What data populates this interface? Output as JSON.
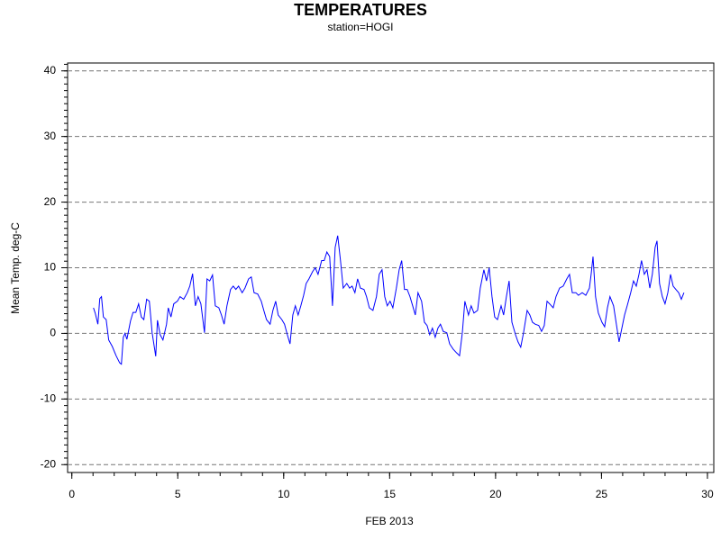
{
  "chart_data": {
    "type": "line",
    "title": "TEMPERATURES",
    "subtitle": "station=HOGI",
    "x_label": "FEB 2013",
    "y_label": "Mean Temp. deg-C",
    "xlim": [
      -0.2,
      30.3
    ],
    "ylim": [
      -21.2,
      41.2
    ],
    "xticks": [
      0,
      5,
      10,
      15,
      20,
      25,
      30
    ],
    "yticks": [
      -20,
      -10,
      0,
      10,
      20,
      30,
      40
    ],
    "grid": true,
    "series": [
      {
        "name": "Mean Temp",
        "color": "#0000ff",
        "x": [
          1.02,
          1.1,
          1.23,
          1.32,
          1.4,
          1.49,
          1.62,
          1.74,
          1.91,
          2.09,
          2.26,
          2.34,
          2.43,
          2.51,
          2.6,
          2.77,
          2.89,
          3.02,
          3.15,
          3.28,
          3.4,
          3.53,
          3.66,
          3.79,
          3.96,
          4.04,
          4.17,
          4.3,
          4.47,
          4.55,
          4.68,
          4.81,
          4.98,
          5.11,
          5.28,
          5.45,
          5.57,
          5.7,
          5.83,
          5.96,
          6.09,
          6.26,
          6.38,
          6.51,
          6.64,
          6.77,
          6.94,
          7.06,
          7.19,
          7.32,
          7.49,
          7.62,
          7.74,
          7.87,
          8.04,
          8.17,
          8.34,
          8.47,
          8.6,
          8.77,
          8.94,
          9.06,
          9.19,
          9.36,
          9.49,
          9.62,
          9.74,
          9.91,
          10.04,
          10.17,
          10.3,
          10.43,
          10.55,
          10.68,
          10.81,
          10.94,
          11.06,
          11.19,
          11.36,
          11.49,
          11.62,
          11.79,
          11.91,
          12.04,
          12.17,
          12.3,
          12.43,
          12.55,
          12.68,
          12.81,
          12.98,
          13.11,
          13.23,
          13.36,
          13.49,
          13.62,
          13.79,
          13.91,
          14.04,
          14.21,
          14.38,
          14.51,
          14.64,
          14.77,
          14.89,
          15.02,
          15.15,
          15.32,
          15.45,
          15.57,
          15.7,
          15.83,
          15.96,
          16.09,
          16.21,
          16.34,
          16.51,
          16.64,
          16.77,
          16.89,
          17.02,
          17.15,
          17.28,
          17.4,
          17.53,
          17.7,
          17.83,
          18.0,
          18.17,
          18.3,
          18.43,
          18.55,
          18.72,
          18.85,
          18.98,
          19.15,
          19.28,
          19.45,
          19.57,
          19.7,
          19.83,
          19.96,
          20.09,
          20.26,
          20.38,
          20.51,
          20.64,
          20.77,
          20.94,
          21.06,
          21.19,
          21.32,
          21.49,
          21.62,
          21.74,
          21.87,
          22.04,
          22.17,
          22.3,
          22.43,
          22.55,
          22.72,
          22.85,
          23.02,
          23.19,
          23.36,
          23.49,
          23.62,
          23.79,
          23.91,
          24.09,
          24.26,
          24.43,
          24.51,
          24.6,
          24.72,
          24.85,
          25.02,
          25.15,
          25.28,
          25.4,
          25.57,
          25.7,
          25.83,
          25.96,
          26.09,
          26.21,
          26.38,
          26.51,
          26.64,
          26.77,
          26.89,
          27.02,
          27.15,
          27.28,
          27.4,
          27.53,
          27.62,
          27.74,
          27.87,
          28.0,
          28.13,
          28.26,
          28.38,
          28.51,
          28.64,
          28.77,
          28.89
        ],
        "values": [
          3.9,
          3.1,
          1.4,
          5.3,
          5.6,
          2.5,
          2.1,
          -1.0,
          -2.0,
          -3.4,
          -4.5,
          -4.7,
          -0.6,
          0,
          -0.9,
          1.9,
          3.2,
          3.2,
          4.5,
          2.5,
          2.1,
          5.2,
          4.9,
          0.1,
          -3.5,
          2.0,
          -0.2,
          -1.0,
          1.4,
          3.9,
          2.5,
          4.5,
          4.9,
          5.6,
          5.2,
          6.2,
          7.2,
          9.1,
          4.2,
          5.6,
          4.5,
          0.1,
          8.3,
          8.0,
          8.9,
          4.2,
          3.9,
          2.8,
          1.4,
          4.2,
          6.7,
          7.2,
          6.7,
          7.2,
          6.2,
          6.9,
          8.3,
          8.6,
          6.2,
          6.0,
          4.9,
          3.5,
          2.1,
          1.4,
          3.5,
          4.9,
          2.8,
          2.1,
          1.4,
          -0.2,
          -1.6,
          2.8,
          4.2,
          2.8,
          4.2,
          5.8,
          7.6,
          8.3,
          9.4,
          10.0,
          9.0,
          11.1,
          11.1,
          12.4,
          11.7,
          4.2,
          13.1,
          14.9,
          11.1,
          6.9,
          7.6,
          6.9,
          7.2,
          6.2,
          8.3,
          6.9,
          6.7,
          5.6,
          3.9,
          3.5,
          5.6,
          9.0,
          9.7,
          5.6,
          4.2,
          4.9,
          3.9,
          6.9,
          9.7,
          11.1,
          6.7,
          6.7,
          5.6,
          4.2,
          2.8,
          6.2,
          4.9,
          1.7,
          1.2,
          -0.2,
          0.8,
          -0.6,
          0.8,
          1.4,
          0.3,
          0.1,
          -1.6,
          -2.4,
          -3.0,
          -3.4,
          0.1,
          4.9,
          2.8,
          4.2,
          3.1,
          3.5,
          6.9,
          9.7,
          8.0,
          10.0,
          5.6,
          2.5,
          2.1,
          4.2,
          2.8,
          5.6,
          8.0,
          1.7,
          -0.2,
          -1.3,
          -2.1,
          0.1,
          3.5,
          2.8,
          1.7,
          1.4,
          1.2,
          0.3,
          1.2,
          4.9,
          4.5,
          3.9,
          5.6,
          6.9,
          7.2,
          8.3,
          9.0,
          6.2,
          6.2,
          5.8,
          6.2,
          5.8,
          6.9,
          9.0,
          11.7,
          5.6,
          3.1,
          1.7,
          1.0,
          3.9,
          5.6,
          4.2,
          1.4,
          -1.3,
          0.8,
          2.8,
          4.2,
          6.2,
          8.0,
          7.2,
          9.0,
          11.1,
          9.0,
          9.7,
          6.9,
          9.0,
          13.1,
          14.1,
          7.6,
          5.6,
          4.5,
          6.2,
          9.0,
          7.2,
          6.7,
          6.2,
          5.2,
          6.2
        ]
      }
    ]
  }
}
